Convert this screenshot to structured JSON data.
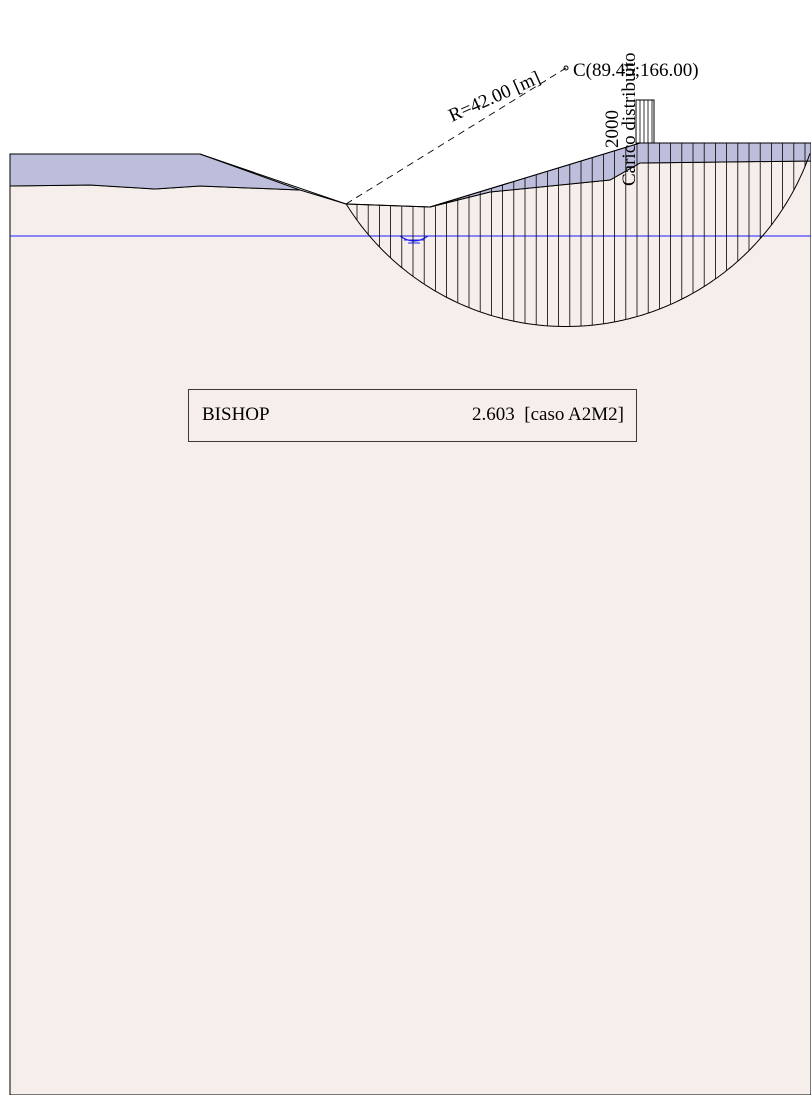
{
  "circle": {
    "radius_label": "R=42.00 [m]",
    "center_label": "C(89.45;166.00)"
  },
  "load": {
    "value": "2000",
    "name": "Carico distribuito"
  },
  "result": {
    "method": "BISHOP",
    "value": "2.603",
    "case": "[caso A2M2]"
  },
  "colors": {
    "soil_fill": "#f6eeeb",
    "upper_layer_fill": "#bdbedc",
    "water_line": "#1c1cff",
    "outline": "#000000"
  }
}
